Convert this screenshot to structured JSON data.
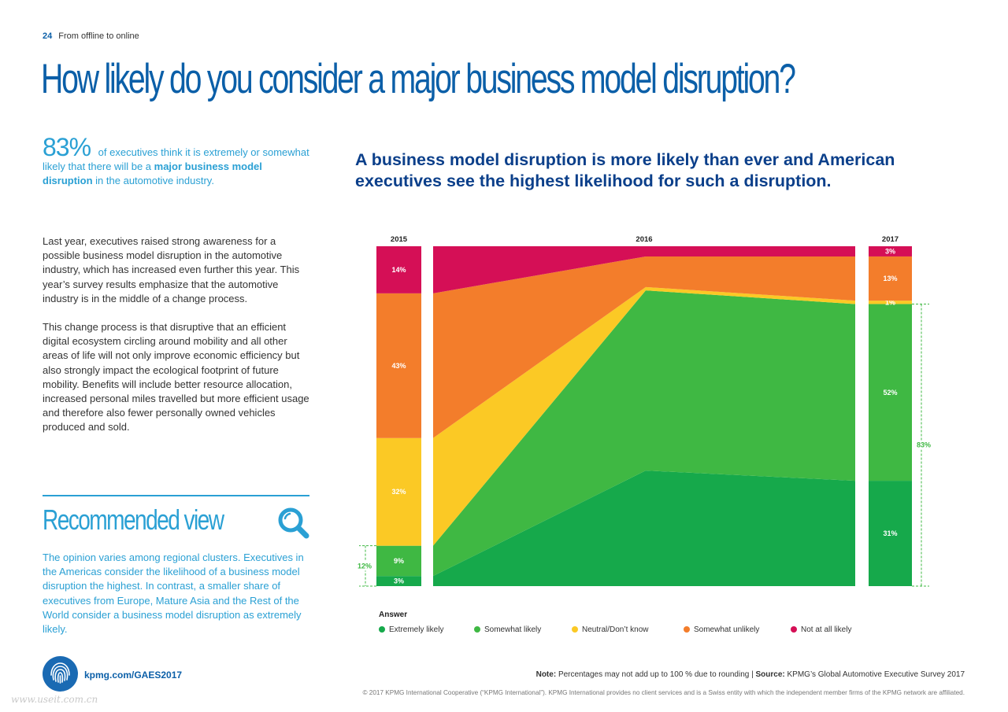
{
  "header": {
    "page_number": "24",
    "section": "From offline to online"
  },
  "title": "How likely do you consider a major business model disruption?",
  "stat": {
    "big": "83%",
    "text_before": "of executives think it is extremely or some­what likely that there will be a",
    "bold": "major business model disruption",
    "text_after": "in the automotive industry."
  },
  "body": {
    "p1": "Last year, executives raised strong awareness for a possible business model disruption in the automotive industry, which has increased even further this year. This year’s survey results emphasize that the automo­tive industry is in the middle of a change process.",
    "p2": "This change process is that disruptive that an efficient digital ecosystem circling around mobility and all other areas of life will not only improve economic efficiency but also strongly impact the ecological footprint of future mobility. Benefits will include better resource allocation, increased personal miles travelled but more efficient usage and therefore also fewer personally owned vehicles produced and sold."
  },
  "recommended": {
    "title": "Recommended view",
    "text": "The opinion varies among regional clusters. Executives in the Americas consider the likelihood of a business model disruption the highest. In contrast, a smaller share of executives from Europe, Mature Asia and the Rest of the World consider a business model disrup­tion as extremely likely."
  },
  "chart_title": "A business model disruption is more likely than ever and American executives see the highest likelihood for such a disruption.",
  "chart_data": {
    "type": "bar",
    "stacked": true,
    "unit": "%",
    "categories": [
      "2015",
      "2016",
      "2017"
    ],
    "series": [
      {
        "name": "Extremely likely",
        "color": "#16a94b",
        "values": [
          3,
          34,
          31
        ],
        "labels": [
          "3%",
          "",
          "31%"
        ]
      },
      {
        "name": "Somewhat likely",
        "color": "#3fb843",
        "values": [
          9,
          53,
          52
        ],
        "labels": [
          "9%",
          "",
          "52%"
        ]
      },
      {
        "name": "Neutral/Don’t know",
        "color": "#fbc925",
        "values": [
          32,
          1,
          1
        ],
        "labels": [
          "32%",
          "",
          "1%"
        ]
      },
      {
        "name": "Somewhat unlikely",
        "color": "#f37d2b",
        "values": [
          43,
          9,
          13
        ],
        "labels": [
          "43%",
          "",
          "13%"
        ]
      },
      {
        "name": "Not at all likely",
        "color": "#d50f56",
        "values": [
          14,
          3,
          3
        ],
        "labels": [
          "14%",
          "",
          "3%"
        ]
      }
    ],
    "brackets": [
      {
        "category": "2015",
        "label": "12%",
        "color": "#3fb843"
      },
      {
        "category": "2017",
        "label": "83%",
        "color": "#3fb843"
      }
    ],
    "ylim": [
      0,
      100
    ],
    "legend_title": "Answer",
    "legend_position": "bottom"
  },
  "footer": {
    "link": "kpmg.com/GAES2017",
    "note_label": "Note:",
    "note_text": "Percentages may not add up to 100 % due to rounding |",
    "source_label": "Source:",
    "source_text": "KPMG’s Global Automotive Executive Survey 2017",
    "copyright": "© 2017 KPMG International Cooperative (“KPMG International”). KPMG International provides no client services and is a Swiss entity with which the independent member firms of the KPMG network are affiliated.",
    "watermark": "www.useit.com.cn"
  }
}
